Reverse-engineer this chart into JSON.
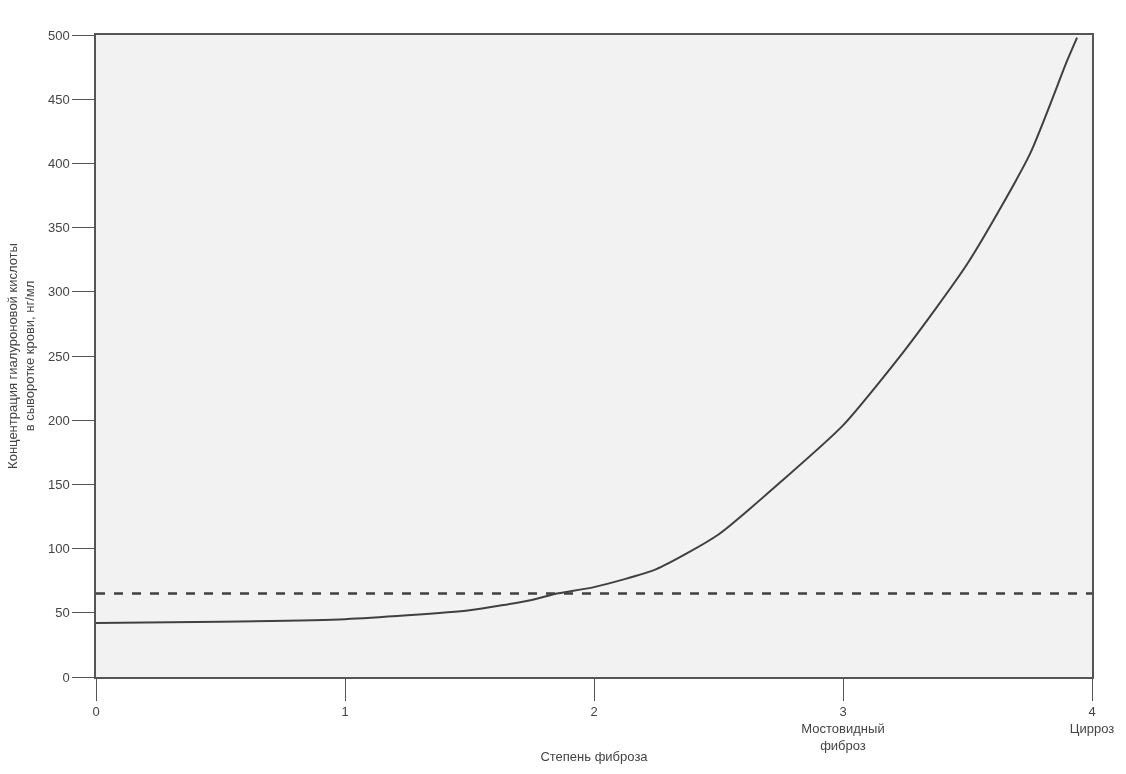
{
  "chart_data": {
    "type": "line",
    "xlabel": "Степень фиброза",
    "ylabel": "Концентрация гиалуроновой кислоты\nв сыворотке крови, нг/мл",
    "x": [
      0,
      0.5,
      1,
      1.25,
      1.5,
      1.75,
      1.85,
      2,
      2.25,
      2.5,
      2.75,
      3,
      3.25,
      3.5,
      3.75,
      3.9,
      3.94
    ],
    "series": [
      {
        "color": "#404040",
        "values": [
          42,
          43,
          45,
          48,
          52,
          60,
          65,
          70,
          84,
          111,
          152,
          196,
          255,
          322,
          407,
          480,
          498
        ]
      }
    ],
    "xlim": [
      0,
      4
    ],
    "ylim": [
      0,
      500
    ],
    "xticks": [
      0,
      1,
      2,
      {
        "value": 3,
        "label": "3\nМостовидный\nфиброз"
      },
      {
        "value": 4,
        "label": "4\nЦирроз"
      }
    ],
    "yticks": [
      0,
      50,
      100,
      150,
      200,
      250,
      300,
      350,
      400,
      450,
      500
    ],
    "ref_lines": [
      {
        "axis": "y",
        "value": 65,
        "color": "#404040",
        "line_style": "dashed"
      }
    ],
    "grid": false,
    "marker": "none",
    "line_style": "solid"
  }
}
